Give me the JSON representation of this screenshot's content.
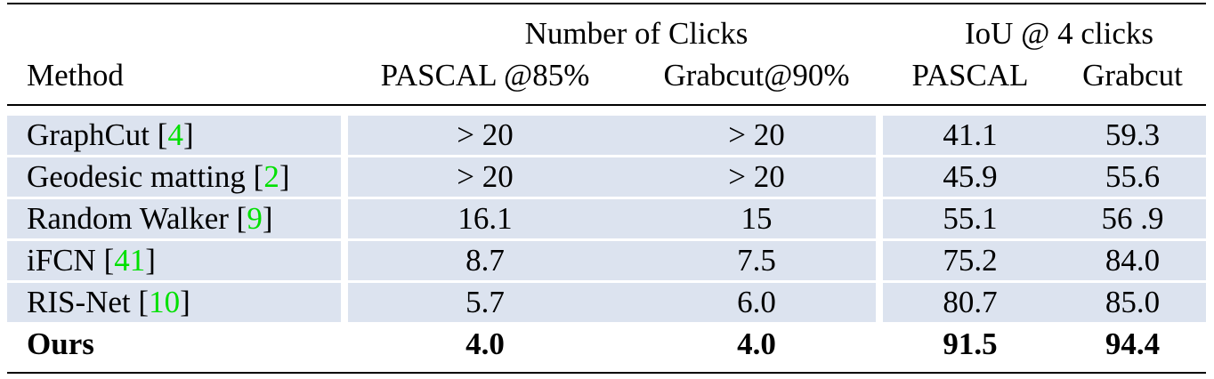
{
  "header": {
    "method": "Method",
    "group_clicks": "Number of Clicks",
    "group_iou": "IoU @ 4 clicks",
    "columns": [
      "PASCAL @85%",
      "Grabcut@90%",
      "PASCAL",
      "Grabcut"
    ]
  },
  "colors": {
    "band": "#dce3ef",
    "citation": "#00e000"
  },
  "rows": [
    {
      "method": "GraphCut",
      "cite": "4",
      "values": [
        "> 20",
        "> 20",
        "41.1",
        "59.3"
      ],
      "shaded": true,
      "bold": false
    },
    {
      "method": "Geodesic matting",
      "cite": "2",
      "values": [
        "> 20",
        "> 20",
        "45.9",
        "55.6"
      ],
      "shaded": true,
      "bold": false
    },
    {
      "method": "Random Walker",
      "cite": "9",
      "values": [
        "16.1",
        "15",
        "55.1",
        "56 .9"
      ],
      "shaded": true,
      "bold": false
    },
    {
      "method": "iFCN ",
      "cite": "41",
      "values": [
        "8.7",
        "7.5",
        "75.2",
        "84.0"
      ],
      "shaded": true,
      "bold": false
    },
    {
      "method": "RIS-Net",
      "cite": "10",
      "values": [
        "5.7",
        "6.0",
        "80.7",
        "85.0"
      ],
      "shaded": true,
      "bold": false
    },
    {
      "method": "Ours",
      "cite": "",
      "values": [
        "4.0",
        "4.0",
        "91.5",
        "94.4"
      ],
      "shaded": false,
      "bold": true
    }
  ]
}
